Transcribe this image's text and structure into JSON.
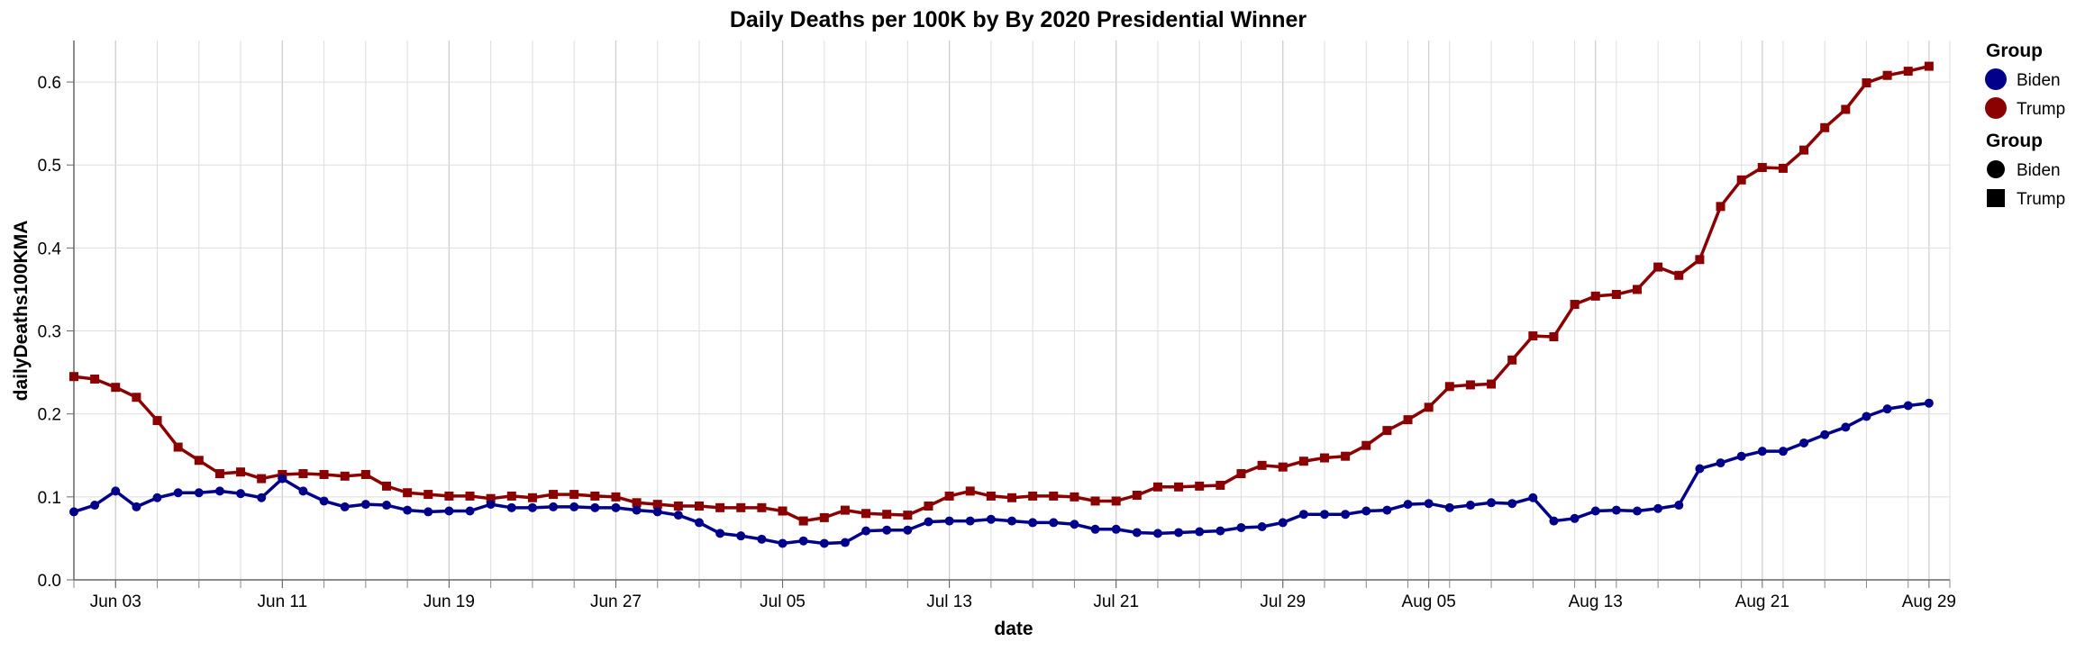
{
  "chart_data": {
    "type": "line",
    "title": "Daily Deaths per 100K by By 2020 Presidential Winner",
    "xlabel": "date",
    "ylabel": "dailyDeaths100KMA",
    "x_start": "2020-06-01",
    "x_range": [
      "2020-06-01",
      "2020-08-30"
    ],
    "ylim": [
      0,
      0.65
    ],
    "yticks": [
      0.0,
      0.1,
      0.2,
      0.3,
      0.4,
      0.5,
      0.6
    ],
    "ytick_labels": [
      "0.0",
      "0.1",
      "0.2",
      "0.3",
      "0.4",
      "0.5",
      "0.6"
    ],
    "xticks": [
      {
        "date": "2020-06-03",
        "label": "Jun 03"
      },
      {
        "date": "2020-06-11",
        "label": "Jun 11"
      },
      {
        "date": "2020-06-19",
        "label": "Jun 19"
      },
      {
        "date": "2020-06-27",
        "label": "Jun 27"
      },
      {
        "date": "2020-07-05",
        "label": "Jul 05"
      },
      {
        "date": "2020-07-13",
        "label": "Jul 13"
      },
      {
        "date": "2020-07-21",
        "label": "Jul 21"
      },
      {
        "date": "2020-07-29",
        "label": "Jul 29"
      },
      {
        "date": "2020-08-05",
        "label": "Aug 05"
      },
      {
        "date": "2020-08-13",
        "label": "Aug 13"
      },
      {
        "date": "2020-08-21",
        "label": "Aug 21"
      },
      {
        "date": "2020-08-29",
        "label": "Aug 29"
      }
    ],
    "grid": true,
    "legend_position": "right",
    "legends": [
      {
        "title": "Group",
        "kind": "color",
        "entries": [
          {
            "label": "Biden",
            "color": "#00008b",
            "shape": "circle"
          },
          {
            "label": "Trump",
            "color": "#8b0000",
            "shape": "circle"
          }
        ]
      },
      {
        "title": "Group",
        "kind": "shape",
        "entries": [
          {
            "label": "Biden",
            "color": "#000000",
            "shape": "circle"
          },
          {
            "label": "Trump",
            "color": "#000000",
            "shape": "square"
          }
        ]
      }
    ],
    "series": [
      {
        "name": "Trump",
        "color": "#8b0000",
        "marker": "square",
        "values": [
          0.245,
          0.242,
          0.232,
          0.22,
          0.192,
          0.16,
          0.144,
          0.128,
          0.13,
          0.122,
          0.127,
          0.128,
          0.127,
          0.125,
          0.127,
          0.113,
          0.105,
          0.103,
          0.101,
          0.101,
          0.098,
          0.101,
          0.099,
          0.103,
          0.103,
          0.101,
          0.1,
          0.093,
          0.091,
          0.089,
          0.089,
          0.087,
          0.087,
          0.087,
          0.083,
          0.071,
          0.075,
          0.084,
          0.08,
          0.079,
          0.078,
          0.089,
          0.101,
          0.107,
          0.101,
          0.099,
          0.101,
          0.101,
          0.1,
          0.095,
          0.095,
          0.102,
          0.112,
          0.112,
          0.113,
          0.114,
          0.128,
          0.138,
          0.136,
          0.143,
          0.147,
          0.149,
          0.162,
          0.18,
          0.193,
          0.208,
          0.233,
          0.235,
          0.236,
          0.265,
          0.294,
          0.293,
          0.332,
          0.342,
          0.344,
          0.35,
          0.377,
          0.367,
          0.386,
          0.45,
          0.482,
          0.497,
          0.496,
          0.518,
          0.545,
          0.567,
          0.599,
          0.608,
          0.613,
          0.619
        ]
      },
      {
        "name": "Biden",
        "color": "#00008b",
        "marker": "circle",
        "values": [
          0.082,
          0.09,
          0.107,
          0.088,
          0.099,
          0.105,
          0.105,
          0.107,
          0.104,
          0.099,
          0.122,
          0.107,
          0.095,
          0.088,
          0.091,
          0.09,
          0.084,
          0.082,
          0.083,
          0.083,
          0.091,
          0.087,
          0.087,
          0.088,
          0.088,
          0.087,
          0.087,
          0.084,
          0.082,
          0.078,
          0.069,
          0.056,
          0.053,
          0.049,
          0.044,
          0.047,
          0.044,
          0.045,
          0.059,
          0.06,
          0.06,
          0.07,
          0.071,
          0.071,
          0.073,
          0.071,
          0.069,
          0.069,
          0.067,
          0.061,
          0.061,
          0.057,
          0.056,
          0.057,
          0.058,
          0.059,
          0.063,
          0.064,
          0.069,
          0.079,
          0.079,
          0.079,
          0.083,
          0.084,
          0.091,
          0.092,
          0.087,
          0.09,
          0.093,
          0.092,
          0.099,
          0.071,
          0.074,
          0.083,
          0.084,
          0.083,
          0.086,
          0.09,
          0.134,
          0.141,
          0.149,
          0.155,
          0.155,
          0.165,
          0.175,
          0.184,
          0.197,
          0.206,
          0.21,
          0.213
        ]
      }
    ]
  }
}
